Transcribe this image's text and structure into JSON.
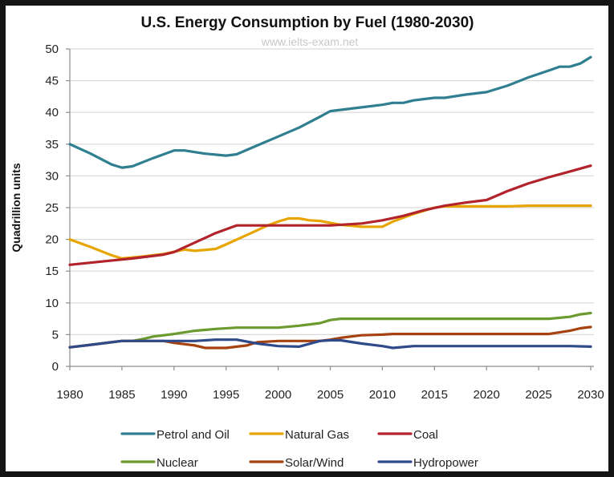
{
  "chart_data": {
    "type": "line",
    "title": "U.S. Energy Consumption by Fuel (1980-2030)",
    "watermark": "www.ielts-exam.net",
    "xlabel": "",
    "ylabel": "Quadrillion units",
    "xlim": [
      1980,
      2030
    ],
    "ylim": [
      0,
      50
    ],
    "x_ticks": [
      "1980",
      "1985",
      "1990",
      "1995",
      "2000",
      "2005",
      "2010",
      "2015",
      "2020",
      "2025",
      "2030"
    ],
    "y_ticks": [
      "0",
      "5",
      "10",
      "15",
      "20",
      "25",
      "30",
      "35",
      "40",
      "45",
      "50"
    ],
    "grid": "horizontal",
    "legend_position": "bottom",
    "series": [
      {
        "name": "Petrol and Oil",
        "color": "#2f7f91",
        "points": [
          [
            1980,
            35
          ],
          [
            1982,
            33.5
          ],
          [
            1984,
            31.8
          ],
          [
            1985,
            31.3
          ],
          [
            1986,
            31.5
          ],
          [
            1988,
            32.8
          ],
          [
            1990,
            34
          ],
          [
            1991,
            34
          ],
          [
            1993,
            33.5
          ],
          [
            1995,
            33.2
          ],
          [
            1996,
            33.4
          ],
          [
            1998,
            34.8
          ],
          [
            2000,
            36.2
          ],
          [
            2002,
            37.6
          ],
          [
            2004,
            39.3
          ],
          [
            2005,
            40.2
          ],
          [
            2008,
            40.8
          ],
          [
            2010,
            41.2
          ],
          [
            2011,
            41.5
          ],
          [
            2012,
            41.5
          ],
          [
            2013,
            41.9
          ],
          [
            2015,
            42.3
          ],
          [
            2016,
            42.3
          ],
          [
            2018,
            42.8
          ],
          [
            2020,
            43.2
          ],
          [
            2022,
            44.2
          ],
          [
            2024,
            45.5
          ],
          [
            2026,
            46.6
          ],
          [
            2027,
            47.2
          ],
          [
            2028,
            47.2
          ],
          [
            2029,
            47.7
          ],
          [
            2030,
            48.7
          ]
        ]
      },
      {
        "name": "Natural Gas",
        "color": "#e8a500",
        "points": [
          [
            1980,
            20
          ],
          [
            1982,
            18.8
          ],
          [
            1984,
            17.5
          ],
          [
            1985,
            17
          ],
          [
            1987,
            17.3
          ],
          [
            1989,
            17.7
          ],
          [
            1991,
            18.4
          ],
          [
            1992,
            18.2
          ],
          [
            1994,
            18.5
          ],
          [
            1995,
            19.2
          ],
          [
            1997,
            20.7
          ],
          [
            1999,
            22.2
          ],
          [
            2000,
            22.8
          ],
          [
            2001,
            23.3
          ],
          [
            2002,
            23.3
          ],
          [
            2003,
            23
          ],
          [
            2004,
            22.9
          ],
          [
            2005,
            22.6
          ],
          [
            2006,
            22.3
          ],
          [
            2008,
            22
          ],
          [
            2010,
            22
          ],
          [
            2011,
            22.8
          ],
          [
            2013,
            24
          ],
          [
            2015,
            25
          ],
          [
            2016,
            25.2
          ],
          [
            2020,
            25.2
          ],
          [
            2022,
            25.2
          ],
          [
            2024,
            25.3
          ],
          [
            2030,
            25.3
          ]
        ]
      },
      {
        "name": "Coal",
        "color": "#b2232b",
        "points": [
          [
            1980,
            16
          ],
          [
            1983,
            16.5
          ],
          [
            1986,
            17
          ],
          [
            1989,
            17.6
          ],
          [
            1990,
            18
          ],
          [
            1992,
            19.5
          ],
          [
            1994,
            21
          ],
          [
            1996,
            22.2
          ],
          [
            2000,
            22.2
          ],
          [
            2005,
            22.2
          ],
          [
            2008,
            22.5
          ],
          [
            2010,
            23
          ],
          [
            2012,
            23.7
          ],
          [
            2014,
            24.6
          ],
          [
            2016,
            25.3
          ],
          [
            2018,
            25.8
          ],
          [
            2020,
            26.2
          ],
          [
            2022,
            27.6
          ],
          [
            2024,
            28.8
          ],
          [
            2026,
            29.8
          ],
          [
            2028,
            30.7
          ],
          [
            2030,
            31.6
          ]
        ]
      },
      {
        "name": "Nuclear",
        "color": "#6b9a2e",
        "points": [
          [
            1980,
            3
          ],
          [
            1982,
            3.4
          ],
          [
            1984,
            3.8
          ],
          [
            1985,
            4
          ],
          [
            1986,
            4
          ],
          [
            1987,
            4.3
          ],
          [
            1988,
            4.7
          ],
          [
            1990,
            5.1
          ],
          [
            1992,
            5.6
          ],
          [
            1994,
            5.9
          ],
          [
            1996,
            6.1
          ],
          [
            1998,
            6.1
          ],
          [
            2000,
            6.1
          ],
          [
            2002,
            6.4
          ],
          [
            2004,
            6.8
          ],
          [
            2005,
            7.3
          ],
          [
            2006,
            7.5
          ],
          [
            2010,
            7.5
          ],
          [
            2015,
            7.5
          ],
          [
            2020,
            7.5
          ],
          [
            2025,
            7.5
          ],
          [
            2026,
            7.5
          ],
          [
            2028,
            7.8
          ],
          [
            2029,
            8.2
          ],
          [
            2030,
            8.4
          ]
        ]
      },
      {
        "name": "Solar/Wind",
        "color": "#a5420f",
        "points": [
          [
            1980,
            3
          ],
          [
            1982,
            3.4
          ],
          [
            1984,
            3.8
          ],
          [
            1985,
            4
          ],
          [
            1989,
            4
          ],
          [
            1990,
            3.7
          ],
          [
            1992,
            3.3
          ],
          [
            1993,
            2.9
          ],
          [
            1995,
            2.9
          ],
          [
            1997,
            3.3
          ],
          [
            1998,
            3.8
          ],
          [
            2000,
            4
          ],
          [
            2004,
            4
          ],
          [
            2005,
            4.2
          ],
          [
            2006,
            4.5
          ],
          [
            2008,
            4.9
          ],
          [
            2010,
            5
          ],
          [
            2011,
            5.1
          ],
          [
            2015,
            5.1
          ],
          [
            2020,
            5.1
          ],
          [
            2026,
            5.1
          ],
          [
            2028,
            5.6
          ],
          [
            2029,
            6
          ],
          [
            2030,
            6.2
          ]
        ]
      },
      {
        "name": "Hydropower",
        "color": "#2f4a8a",
        "points": [
          [
            1980,
            3
          ],
          [
            1982,
            3.4
          ],
          [
            1984,
            3.8
          ],
          [
            1985,
            4
          ],
          [
            1992,
            4
          ],
          [
            1994,
            4.2
          ],
          [
            1996,
            4.2
          ],
          [
            1998,
            3.6
          ],
          [
            2000,
            3.2
          ],
          [
            2002,
            3.1
          ],
          [
            2004,
            4
          ],
          [
            2005,
            4.1
          ],
          [
            2006,
            4.1
          ],
          [
            2008,
            3.6
          ],
          [
            2010,
            3.2
          ],
          [
            2011,
            2.9
          ],
          [
            2013,
            3.2
          ],
          [
            2015,
            3.2
          ],
          [
            2020,
            3.2
          ],
          [
            2028,
            3.2
          ],
          [
            2030,
            3.1
          ]
        ]
      }
    ]
  }
}
